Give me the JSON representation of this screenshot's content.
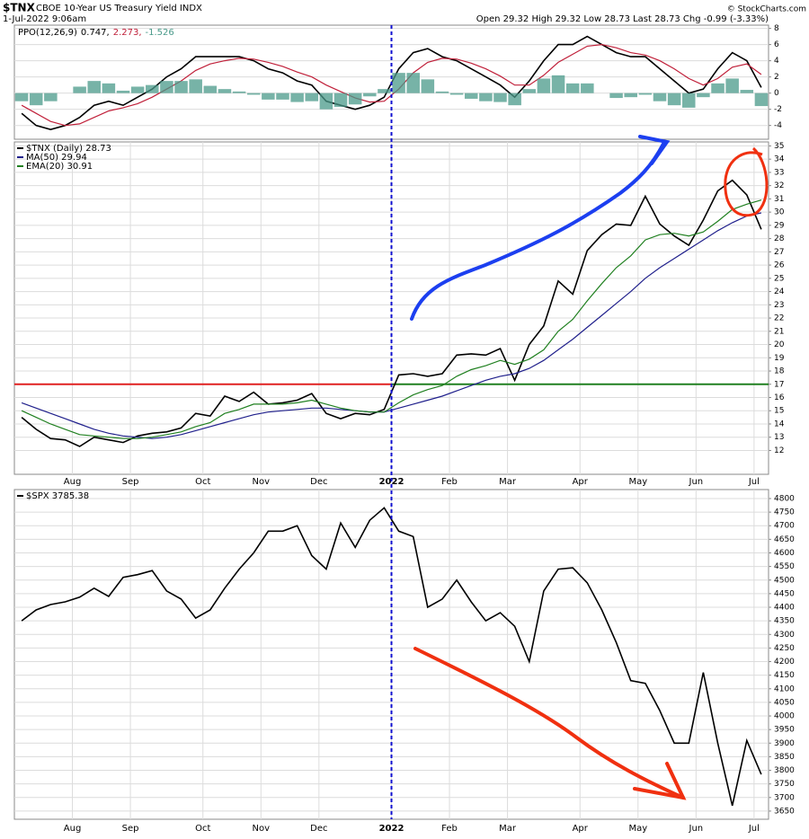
{
  "header": {
    "symbol": "$TNX",
    "name": "CBOE 10-Year US Treasury Yield INDX",
    "date": "1-Jul-2022 9:06am",
    "quote": "Open 29.32 High 29.32 Low 28.73 Last 28.73 Chg -0.99 (-3.33%)",
    "credit": "© StockCharts.com"
  },
  "chart_data": [
    {
      "type": "line",
      "label": "PPO(12,26,9)",
      "ylim": [
        -5.7,
        8.4
      ],
      "yticks": [
        -4,
        -2,
        0,
        2,
        4,
        6,
        8
      ],
      "grid": true,
      "series": [
        {
          "name": "0.747,",
          "color": "#000000",
          "values": [
            -2.5,
            -4,
            -4.5,
            -4,
            -3,
            -1.5,
            -1,
            -1.5,
            -0.5,
            0.5,
            2,
            3,
            4.5,
            4.5,
            4.5,
            4.5,
            4,
            3,
            2.5,
            1.5,
            1,
            -1,
            -1.5,
            -2,
            -1.5,
            -0.5,
            3,
            5,
            5.5,
            4.5,
            4,
            3,
            2,
            1,
            -0.5,
            1.5,
            4,
            6,
            6,
            7,
            6,
            5,
            4.5,
            4.5,
            3,
            1.5,
            0,
            0.5,
            3,
            5,
            4,
            0.7
          ]
        },
        {
          "name": "2.273,",
          "color": "#c0203a",
          "values": [
            -1.5,
            -2.5,
            -3.5,
            -4,
            -3.8,
            -3,
            -2.2,
            -1.8,
            -1.3,
            -0.5,
            0.5,
            1.5,
            2.8,
            3.6,
            4,
            4.3,
            4.2,
            3.8,
            3.3,
            2.6,
            2,
            1,
            0.2,
            -0.6,
            -1.1,
            -1,
            0.5,
            2.5,
            3.8,
            4.3,
            4.2,
            3.7,
            3,
            2.1,
            1,
            1,
            2.2,
            3.8,
            4.8,
            5.8,
            6,
            5.6,
            5,
            4.7,
            4,
            3,
            1.8,
            1,
            1.8,
            3.2,
            3.6,
            2.3
          ]
        },
        {
          "name": "-1.526",
          "color": "#4a9a8a",
          "style": "histogram",
          "values": [
            -1,
            -1.5,
            -1,
            0,
            0.8,
            1.5,
            1.2,
            0.3,
            0.8,
            1,
            1.5,
            1.5,
            1.7,
            0.9,
            0.5,
            0.2,
            -0.2,
            -0.8,
            -0.8,
            -1.1,
            -1,
            -2,
            -1.7,
            -1.4,
            -0.4,
            0.5,
            2.5,
            2.5,
            1.7,
            0.2,
            -0.2,
            -0.7,
            -1,
            -1.1,
            -1.5,
            0.5,
            1.8,
            2.2,
            1.2,
            1.2,
            0,
            -0.6,
            -0.5,
            -0.2,
            -1,
            -1.5,
            -1.8,
            -0.5,
            1.2,
            1.8,
            0.4,
            -1.6
          ]
        }
      ]
    },
    {
      "type": "line",
      "ylim": [
        10.2,
        35.3
      ],
      "yticks": [
        12,
        13,
        14,
        15,
        16,
        17,
        18,
        19,
        20,
        21,
        22,
        23,
        24,
        25,
        26,
        27,
        28,
        29,
        30,
        31,
        32,
        33,
        34,
        35
      ],
      "grid": true,
      "reference_line": 17,
      "reference_colors": [
        "#e02020",
        "#208020"
      ],
      "categories": [
        null,
        null,
        null,
        null,
        "Aug",
        null,
        null,
        null,
        "Sep",
        null,
        null,
        null,
        null,
        "Oct",
        null,
        null,
        null,
        "Nov",
        null,
        null,
        null,
        "Dec",
        null,
        null,
        null,
        null,
        "2022",
        null,
        null,
        null,
        "Feb",
        null,
        null,
        null,
        "Mar",
        null,
        null,
        null,
        null,
        "Apr",
        null,
        null,
        null,
        "May",
        null,
        null,
        null,
        "Jun",
        null,
        null,
        null,
        "Jul"
      ],
      "series": [
        {
          "name": "$TNX (Daily) 28.73",
          "color": "#000000",
          "values": [
            14.5,
            13.6,
            12.9,
            12.8,
            12.3,
            13.0,
            12.8,
            12.6,
            13.1,
            13.3,
            13.4,
            13.7,
            14.8,
            14.6,
            16.1,
            15.7,
            16.4,
            15.5,
            15.6,
            15.8,
            16.3,
            14.8,
            14.4,
            14.8,
            14.7,
            15.1,
            17.7,
            17.8,
            17.6,
            17.8,
            19.2,
            19.3,
            19.2,
            19.7,
            17.3,
            20.0,
            21.4,
            24.8,
            23.8,
            27.1,
            28.3,
            29.1,
            29.0,
            31.2,
            29.1,
            28.2,
            27.5,
            29.4,
            31.6,
            32.4,
            31.3,
            28.7
          ]
        },
        {
          "name": "MA(50) 29.94",
          "color": "#20208c",
          "values": [
            15.6,
            15.2,
            14.8,
            14.4,
            14.0,
            13.6,
            13.3,
            13.1,
            13.0,
            12.9,
            13.0,
            13.2,
            13.5,
            13.8,
            14.1,
            14.4,
            14.7,
            14.9,
            15.0,
            15.1,
            15.2,
            15.2,
            15.1,
            15.0,
            14.9,
            14.9,
            15.2,
            15.5,
            15.8,
            16.1,
            16.5,
            16.9,
            17.3,
            17.6,
            17.8,
            18.2,
            18.8,
            19.6,
            20.4,
            21.3,
            22.2,
            23.1,
            24.0,
            25.0,
            25.8,
            26.5,
            27.2,
            27.9,
            28.6,
            29.2,
            29.7,
            29.94
          ]
        },
        {
          "name": "EMA(20) 30.91",
          "color": "#208020",
          "values": [
            15.0,
            14.5,
            14.0,
            13.6,
            13.2,
            13.1,
            13.0,
            12.9,
            12.9,
            13.0,
            13.2,
            13.4,
            13.8,
            14.1,
            14.8,
            15.1,
            15.5,
            15.5,
            15.5,
            15.6,
            15.8,
            15.5,
            15.2,
            15.0,
            14.9,
            14.9,
            15.6,
            16.2,
            16.6,
            16.9,
            17.6,
            18.1,
            18.4,
            18.8,
            18.5,
            18.9,
            19.6,
            21.0,
            21.9,
            23.3,
            24.6,
            25.8,
            26.7,
            27.9,
            28.3,
            28.4,
            28.2,
            28.5,
            29.3,
            30.2,
            30.6,
            30.91
          ]
        }
      ]
    },
    {
      "type": "line",
      "ylim": [
        3620,
        4833
      ],
      "yticks": [
        3650,
        3700,
        3750,
        3800,
        3850,
        3900,
        3950,
        4000,
        4050,
        4100,
        4150,
        4200,
        4250,
        4300,
        4350,
        4400,
        4450,
        4500,
        4550,
        4600,
        4650,
        4700,
        4750,
        4800
      ],
      "grid": true,
      "categories": [
        null,
        null,
        null,
        null,
        "Aug",
        null,
        null,
        null,
        "Sep",
        null,
        null,
        null,
        null,
        "Oct",
        null,
        null,
        null,
        "Nov",
        null,
        null,
        null,
        "Dec",
        null,
        null,
        null,
        null,
        "2022",
        null,
        null,
        null,
        "Feb",
        null,
        null,
        null,
        "Mar",
        null,
        null,
        null,
        null,
        "Apr",
        null,
        null,
        null,
        "May",
        null,
        null,
        null,
        "Jun",
        null,
        null,
        null,
        "Jul"
      ],
      "series": [
        {
          "name": "$SPX 3785.38",
          "color": "#000000",
          "values": [
            4350,
            4390,
            4410,
            4420,
            4437,
            4470,
            4440,
            4510,
            4520,
            4535,
            4460,
            4430,
            4360,
            4390,
            4470,
            4540,
            4600,
            4680,
            4680,
            4700,
            4590,
            4540,
            4710,
            4620,
            4720,
            4766,
            4680,
            4660,
            4400,
            4430,
            4500,
            4420,
            4350,
            4380,
            4330,
            4200,
            4460,
            4540,
            4545,
            4490,
            4390,
            4270,
            4130,
            4120,
            4020,
            3900,
            3900,
            4160,
            3900,
            3670,
            3910,
            3785
          ]
        }
      ]
    }
  ]
}
